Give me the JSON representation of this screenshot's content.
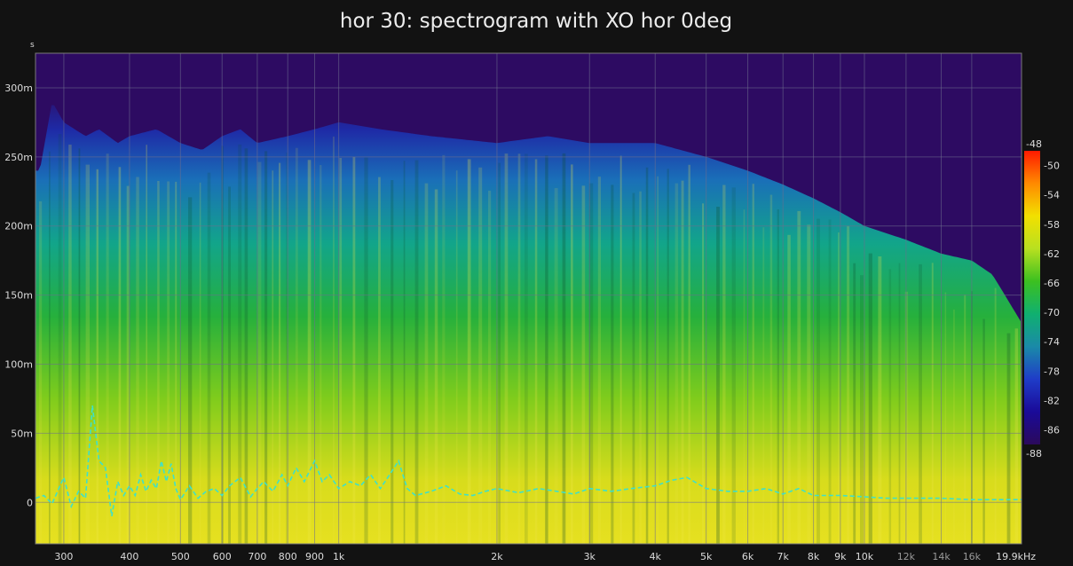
{
  "chart_data": {
    "type": "heatmap",
    "title": "hor 30: spectrogram with XO hor 0deg",
    "ylabel": "s",
    "xlabel": "",
    "x_scale": "log",
    "xlim_hz": [
      265,
      19900
    ],
    "ylim_s": [
      -0.03,
      0.325
    ],
    "x_ticks": [
      {
        "label": "300",
        "value": 300
      },
      {
        "label": "400",
        "value": 400
      },
      {
        "label": "500",
        "value": 500
      },
      {
        "label": "600",
        "value": 600
      },
      {
        "label": "700",
        "value": 700
      },
      {
        "label": "800",
        "value": 800
      },
      {
        "label": "900",
        "value": 900
      },
      {
        "label": "1k",
        "value": 1000
      },
      {
        "label": "2k",
        "value": 2000
      },
      {
        "label": "3k",
        "value": 3000
      },
      {
        "label": "4k",
        "value": 4000
      },
      {
        "label": "5k",
        "value": 5000
      },
      {
        "label": "6k",
        "value": 6000
      },
      {
        "label": "7k",
        "value": 7000
      },
      {
        "label": "8k",
        "value": 8000
      },
      {
        "label": "9k",
        "value": 9000
      },
      {
        "label": "10k",
        "value": 10000
      },
      {
        "label": "12k",
        "value": 12000,
        "dim": true
      },
      {
        "label": "14k",
        "value": 14000,
        "dim": true
      },
      {
        "label": "16k",
        "value": 16000,
        "dim": true
      },
      {
        "label": "19.9kHz",
        "value": 19900
      }
    ],
    "y_ticks": [
      {
        "label": "300m",
        "value": 0.3
      },
      {
        "label": "250m",
        "value": 0.25
      },
      {
        "label": "200m",
        "value": 0.2
      },
      {
        "label": "150m",
        "value": 0.15
      },
      {
        "label": "100m",
        "value": 0.1
      },
      {
        "label": "50m",
        "value": 0.05
      },
      {
        "label": "0",
        "value": 0
      }
    ],
    "colorbar": {
      "min": -88,
      "max": -48,
      "labels": [
        "-48",
        "-50",
        "-54",
        "-58",
        "-62",
        "-66",
        "-70",
        "-74",
        "-78",
        "-82",
        "-86",
        "-88"
      ],
      "colors": [
        "#ff1a00",
        "#ff8a00",
        "#f2e000",
        "#b8e020",
        "#3cc020",
        "#10b070",
        "#1a8aa8",
        "#1f3cc8",
        "#1a0a98",
        "#2b0a5c"
      ]
    },
    "background_color": "#2d0b62",
    "decay_envelope_s": [
      [
        270,
        0.24
      ],
      [
        285,
        0.29
      ],
      [
        300,
        0.275
      ],
      [
        330,
        0.265
      ],
      [
        350,
        0.27
      ],
      [
        380,
        0.26
      ],
      [
        400,
        0.265
      ],
      [
        450,
        0.27
      ],
      [
        500,
        0.26
      ],
      [
        550,
        0.255
      ],
      [
        600,
        0.265
      ],
      [
        650,
        0.27
      ],
      [
        700,
        0.26
      ],
      [
        800,
        0.265
      ],
      [
        900,
        0.27
      ],
      [
        1000,
        0.275
      ],
      [
        1200,
        0.27
      ],
      [
        1500,
        0.265
      ],
      [
        2000,
        0.26
      ],
      [
        2500,
        0.265
      ],
      [
        3000,
        0.26
      ],
      [
        4000,
        0.26
      ],
      [
        5000,
        0.25
      ],
      [
        6000,
        0.24
      ],
      [
        7000,
        0.23
      ],
      [
        8000,
        0.22
      ],
      [
        9000,
        0.21
      ],
      [
        10000,
        0.2
      ],
      [
        12000,
        0.19
      ],
      [
        14000,
        0.18
      ],
      [
        16000,
        0.175
      ],
      [
        17500,
        0.165
      ],
      [
        18500,
        0.15
      ],
      [
        19900,
        0.13
      ]
    ],
    "series": [
      {
        "type": "line",
        "style": "dashed",
        "color": "#3fe0c8",
        "points": [
          [
            265,
            0.003
          ],
          [
            275,
            0.005
          ],
          [
            285,
            -0.001
          ],
          [
            295,
            0.012
          ],
          [
            300,
            0.018
          ],
          [
            310,
            -0.003
          ],
          [
            320,
            0.008
          ],
          [
            330,
            0.003
          ],
          [
            340,
            0.07
          ],
          [
            350,
            0.03
          ],
          [
            360,
            0.025
          ],
          [
            370,
            -0.01
          ],
          [
            380,
            0.015
          ],
          [
            390,
            0.005
          ],
          [
            400,
            0.012
          ],
          [
            410,
            0.005
          ],
          [
            420,
            0.02
          ],
          [
            430,
            0.008
          ],
          [
            440,
            0.016
          ],
          [
            450,
            0.01
          ],
          [
            460,
            0.03
          ],
          [
            470,
            0.015
          ],
          [
            480,
            0.028
          ],
          [
            490,
            0.01
          ],
          [
            500,
            0.002
          ],
          [
            520,
            0.012
          ],
          [
            540,
            0.003
          ],
          [
            560,
            0.008
          ],
          [
            580,
            0.01
          ],
          [
            600,
            0.005
          ],
          [
            620,
            0.012
          ],
          [
            650,
            0.018
          ],
          [
            680,
            0.004
          ],
          [
            700,
            0.01
          ],
          [
            720,
            0.015
          ],
          [
            750,
            0.008
          ],
          [
            780,
            0.02
          ],
          [
            800,
            0.012
          ],
          [
            830,
            0.025
          ],
          [
            860,
            0.015
          ],
          [
            900,
            0.03
          ],
          [
            930,
            0.015
          ],
          [
            960,
            0.02
          ],
          [
            1000,
            0.01
          ],
          [
            1050,
            0.015
          ],
          [
            1100,
            0.012
          ],
          [
            1150,
            0.02
          ],
          [
            1200,
            0.01
          ],
          [
            1250,
            0.02
          ],
          [
            1300,
            0.03
          ],
          [
            1350,
            0.01
          ],
          [
            1400,
            0.005
          ],
          [
            1500,
            0.008
          ],
          [
            1600,
            0.012
          ],
          [
            1700,
            0.006
          ],
          [
            1800,
            0.005
          ],
          [
            1900,
            0.008
          ],
          [
            2000,
            0.01
          ],
          [
            2200,
            0.007
          ],
          [
            2400,
            0.01
          ],
          [
            2600,
            0.008
          ],
          [
            2800,
            0.006
          ],
          [
            3000,
            0.01
          ],
          [
            3300,
            0.008
          ],
          [
            3600,
            0.01
          ],
          [
            4000,
            0.012
          ],
          [
            4300,
            0.016
          ],
          [
            4600,
            0.018
          ],
          [
            5000,
            0.01
          ],
          [
            5500,
            0.008
          ],
          [
            6000,
            0.008
          ],
          [
            6500,
            0.01
          ],
          [
            7000,
            0.006
          ],
          [
            7500,
            0.01
          ],
          [
            8000,
            0.005
          ],
          [
            9000,
            0.005
          ],
          [
            10000,
            0.004
          ],
          [
            11000,
            0.003
          ],
          [
            12000,
            0.003
          ],
          [
            14000,
            0.003
          ],
          [
            16000,
            0.002
          ],
          [
            18000,
            0.002
          ],
          [
            19900,
            0.002
          ]
        ]
      }
    ]
  }
}
